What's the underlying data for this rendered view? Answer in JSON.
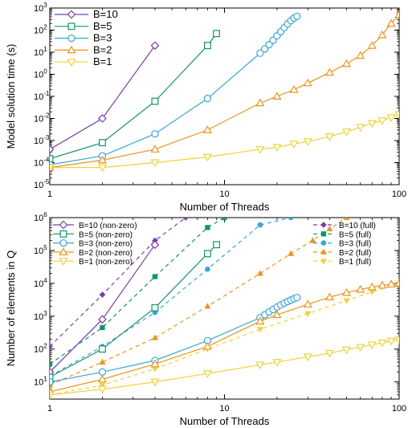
{
  "chart_data": [
    {
      "type": "line",
      "title": "",
      "xlabel": "Number of Threads",
      "ylabel": "Model solution time (s)",
      "xscale": "log",
      "yscale": "log",
      "xlim": [
        1,
        100
      ],
      "ylim": [
        1e-05,
        1000
      ],
      "xticks": [
        {
          "v": 1,
          "label": "1"
        },
        {
          "v": 10,
          "label": "10"
        },
        {
          "v": 100,
          "label": "100"
        }
      ],
      "yticks": [
        {
          "e": -5,
          "label": "10",
          "exp": "-5"
        },
        {
          "e": -4,
          "label": "10",
          "exp": "-4"
        },
        {
          "e": -3,
          "label": "10",
          "exp": "-3"
        },
        {
          "e": -2,
          "label": "10",
          "exp": "-2"
        },
        {
          "e": -1,
          "label": "10",
          "exp": "-1"
        },
        {
          "e": 0,
          "label": "10",
          "exp": "0"
        },
        {
          "e": 1,
          "label": "10",
          "exp": "1"
        },
        {
          "e": 2,
          "label": "10",
          "exp": "2"
        },
        {
          "e": 3,
          "label": "10",
          "exp": "3"
        }
      ],
      "legend_position": "top-left",
      "series": [
        {
          "name": "B=10",
          "color": "#7b3fa6",
          "marker": "diamond",
          "x": [
            1,
            2,
            4
          ],
          "y": [
            0.0004,
            0.01,
            20
          ]
        },
        {
          "name": "B=5",
          "color": "#12936a",
          "marker": "square",
          "x": [
            1,
            2,
            4,
            8,
            9
          ],
          "y": [
            0.00015,
            0.0008,
            0.06,
            20,
            70
          ]
        },
        {
          "name": "B=3",
          "color": "#39a6d6",
          "marker": "circle",
          "x": [
            1,
            2,
            4,
            8,
            16,
            17,
            18,
            19,
            20,
            21,
            22,
            23,
            24,
            25,
            26
          ],
          "y": [
            8e-05,
            0.0002,
            0.002,
            0.08,
            9,
            14,
            22,
            35,
            55,
            85,
            130,
            190,
            270,
            350,
            420
          ]
        },
        {
          "name": "B=2",
          "color": "#e8951f",
          "marker": "triangle-up",
          "x": [
            1,
            2,
            4,
            8,
            16,
            20,
            25,
            30,
            40,
            50,
            60,
            70,
            80,
            90,
            100
          ],
          "y": [
            6e-05,
            0.00013,
            0.0004,
            0.003,
            0.05,
            0.1,
            0.2,
            0.4,
            1.2,
            3,
            7,
            20,
            60,
            200,
            500
          ]
        },
        {
          "name": "B=1",
          "color": "#f0d23a",
          "marker": "triangle-down",
          "x": [
            1,
            2,
            4,
            8,
            16,
            20,
            25,
            30,
            40,
            50,
            60,
            70,
            80,
            90,
            100
          ],
          "y": [
            6e-05,
            6e-05,
            0.0001,
            0.00018,
            0.0004,
            0.0005,
            0.0007,
            0.0009,
            0.0015,
            0.0025,
            0.004,
            0.006,
            0.008,
            0.011,
            0.015
          ]
        }
      ]
    },
    {
      "type": "line",
      "title": "",
      "xlabel": "Number of Threads",
      "ylabel": "Number of elements in Q",
      "xscale": "log",
      "yscale": "log",
      "xlim": [
        1,
        100
      ],
      "ylim": [
        3,
        1000000
      ],
      "xticks": [
        {
          "v": 1,
          "label": "1"
        },
        {
          "v": 10,
          "label": "10"
        },
        {
          "v": 100,
          "label": "100"
        }
      ],
      "yticks": [
        {
          "e": 1,
          "label": "10",
          "exp": "1"
        },
        {
          "e": 2,
          "label": "10",
          "exp": "2"
        },
        {
          "e": 3,
          "label": "10",
          "exp": "3"
        },
        {
          "e": 4,
          "label": "10",
          "exp": "4"
        },
        {
          "e": 5,
          "label": "10",
          "exp": "5"
        },
        {
          "e": 6,
          "label": "10",
          "exp": "6"
        }
      ],
      "legend_position": "top-left and top-right",
      "series": [
        {
          "name": "B=10 (non-zero)",
          "color": "#7b3fa6",
          "marker": "diamond",
          "style": "solid",
          "x": [
            1,
            2,
            4
          ],
          "y": [
            20,
            800,
            150000
          ]
        },
        {
          "name": "B=5 (non-zero)",
          "color": "#12936a",
          "marker": "square",
          "style": "solid",
          "x": [
            1,
            2,
            4,
            8,
            9
          ],
          "y": [
            14,
            100,
            1800,
            80000,
            150000
          ]
        },
        {
          "name": "B=3 (non-zero)",
          "color": "#39a6d6",
          "marker": "circle",
          "style": "solid",
          "x": [
            1,
            2,
            4,
            8,
            16,
            17,
            18,
            19,
            20,
            21,
            22,
            23,
            24,
            25,
            26
          ],
          "y": [
            10,
            20,
            45,
            180,
            900,
            1100,
            1350,
            1600,
            1900,
            2200,
            2500,
            2800,
            3100,
            3400,
            3700
          ]
        },
        {
          "name": "B=2 (non-zero)",
          "color": "#e8951f",
          "marker": "triangle-up",
          "style": "solid",
          "x": [
            1,
            2,
            4,
            8,
            16,
            20,
            30,
            40,
            50,
            60,
            70,
            80,
            90,
            100
          ],
          "y": [
            5,
            12,
            35,
            120,
            700,
            1100,
            2300,
            3800,
            5200,
            6500,
            7700,
            8700,
            9400,
            10000
          ]
        },
        {
          "name": "B=1 (non-zero)",
          "color": "#f0d23a",
          "marker": "triangle-down",
          "style": "solid",
          "x": [
            1,
            2,
            4,
            8,
            16,
            20,
            30,
            40,
            50,
            60,
            70,
            80,
            90,
            100
          ],
          "y": [
            4,
            6,
            10,
            18,
            33,
            40,
            58,
            75,
            95,
            115,
            135,
            155,
            175,
            190
          ]
        },
        {
          "name": "B=10 (full)",
          "color": "#7b3fa6",
          "marker": "diamond-filled",
          "style": "dashed",
          "x": [
            1,
            2,
            4,
            6
          ],
          "y": [
            120,
            4500,
            200000,
            1000000
          ]
        },
        {
          "name": "B=5 (full)",
          "color": "#12936a",
          "marker": "square-filled",
          "style": "dashed",
          "x": [
            1,
            2,
            4,
            8,
            10
          ],
          "y": [
            35,
            450,
            16000,
            500000,
            1000000
          ]
        },
        {
          "name": "B=3 (full)",
          "color": "#39a6d6",
          "marker": "circle-filled",
          "style": "dashed",
          "x": [
            1,
            2,
            4,
            8,
            16,
            24
          ],
          "y": [
            15,
            120,
            1300,
            27000,
            600000,
            1000000
          ]
        },
        {
          "name": "B=2 (full)",
          "color": "#e8951f",
          "marker": "triangle-up-filled",
          "style": "dashed",
          "x": [
            1,
            2,
            4,
            8,
            16,
            24,
            32,
            40,
            50
          ],
          "y": [
            8,
            40,
            220,
            2000,
            20000,
            80000,
            200000,
            450000,
            1000000
          ]
        },
        {
          "name": "B=1 (full)",
          "color": "#f0d23a",
          "marker": "triangle-down-filled",
          "style": "dashed",
          "x": [
            1,
            2,
            4,
            8,
            16,
            30,
            50,
            70,
            100
          ],
          "y": [
            4,
            8,
            25,
            100,
            400,
            1200,
            3000,
            5500,
            9500
          ]
        }
      ]
    }
  ]
}
